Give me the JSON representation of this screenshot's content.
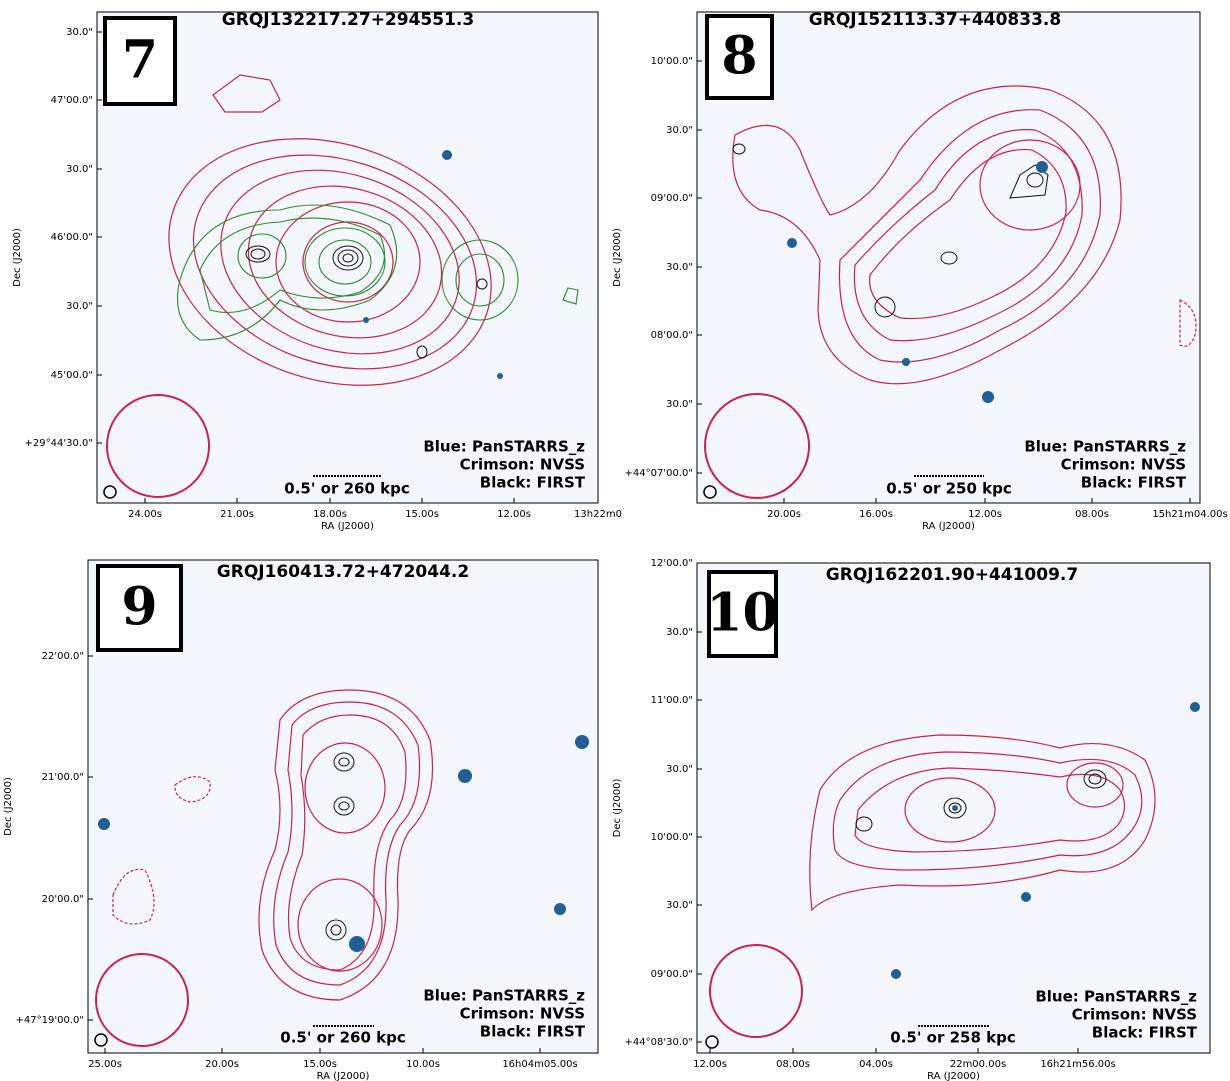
{
  "panels": [
    {
      "number": "7",
      "title": "GRQJ132217.27+294551.3",
      "legend": [
        "Blue: PanSTARRS_z",
        "Crimson: NVSS",
        "Black: FIRST"
      ],
      "scale": "0.5' or 260 kpc",
      "x_label": "RA (J2000)",
      "y_label": "Dec (J2000)",
      "dec_ticks": [
        "30.0\"",
        "47'00.0\"",
        "30.0\"",
        "46'00.0\"",
        "30.0\"",
        "45'00.0\"",
        "+29°44'30.0\""
      ],
      "ra_ticks": [
        "24.00s",
        "21.00s",
        "18.00s",
        "15.00s",
        "12.00s",
        "13h22m0"
      ]
    },
    {
      "number": "8",
      "title": "GRQJ152113.37+440833.8",
      "legend": [
        "Blue: PanSTARRS_z",
        "Crimson: NVSS",
        "Black: FIRST"
      ],
      "scale": "0.5' or 250 kpc",
      "x_label": "RA (J2000)",
      "y_label": "Dec (J2000)",
      "dec_ticks": [
        "10'00.0\"",
        "30.0\"",
        "09'00.0\"",
        "30.0\"",
        "08'00.0\"",
        "30.0\"",
        "+44°07'00.0\""
      ],
      "ra_ticks": [
        "20.00s",
        "16.00s",
        "12.00s",
        "08.00s",
        "15h21m04.00s"
      ]
    },
    {
      "number": "9",
      "title": "GRQJ160413.72+472044.2",
      "legend": [
        "Blue: PanSTARRS_z",
        "Crimson: NVSS",
        "Black: FIRST"
      ],
      "scale": "0.5' or 260 kpc",
      "x_label": "RA (J2000)",
      "y_label": "Dec (J2000)",
      "dec_ticks": [
        "22'00.0\"",
        "21'00.0\"",
        "20'00.0\"",
        "+47°19'00.0\""
      ],
      "ra_ticks": [
        "25.00s",
        "20.00s",
        "15.00s",
        "10.00s",
        "16h04m05.00s"
      ]
    },
    {
      "number": "10",
      "title": "GRQJ162201.90+441009.7",
      "legend": [
        "Blue: PanSTARRS_z",
        "Crimson: NVSS",
        "Black: FIRST"
      ],
      "scale": "0.5' or 258 kpc",
      "x_label": "RA (J2000)",
      "y_label": "Dec (J2000)",
      "dec_ticks": [
        "12'00.0\"",
        "30.0\"",
        "11'00.0\"",
        "30.0\"",
        "10'00.0\"",
        "30.0\"",
        "09'00.0\"",
        "+44°08'30.0\""
      ],
      "ra_ticks": [
        "12.00s",
        "08.00s",
        "04.00s",
        "22m00.00s",
        "16h21m56.00s"
      ]
    }
  ]
}
